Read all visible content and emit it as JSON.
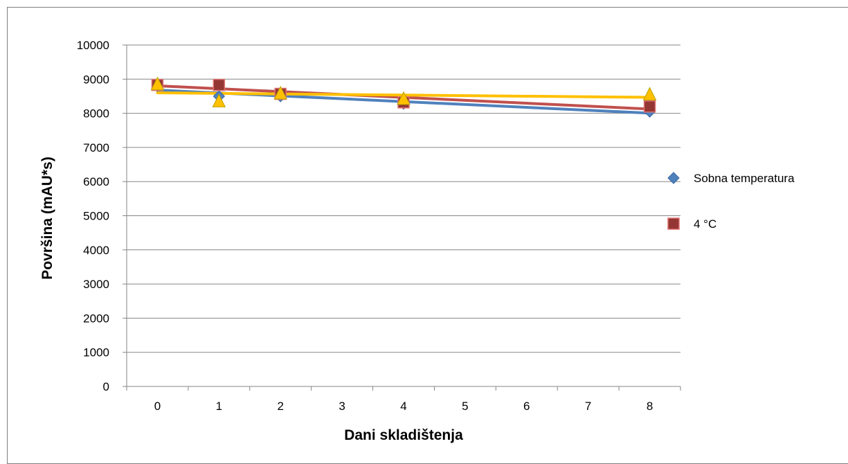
{
  "chart_data": {
    "type": "scatter",
    "xlabel": "Dani skladištenja",
    "ylabel": "Površina (mAU*s)",
    "xlim": [
      -0.5,
      8.5
    ],
    "ylim": [
      0,
      10000
    ],
    "x_ticks": [
      "0",
      "1",
      "2",
      "3",
      "4",
      "5",
      "6",
      "7",
      "8"
    ],
    "y_ticks": [
      "0",
      "1000",
      "2000",
      "3000",
      "4000",
      "5000",
      "6000",
      "7000",
      "8000",
      "9000",
      "10000"
    ],
    "grid": "horizontal",
    "legend_position": "right",
    "trendlines": "linear",
    "series": [
      {
        "name": "Sobna temperatura",
        "marker": "diamond",
        "color": "#4F81BD",
        "trend_color": "#4F81BD",
        "points": [
          [
            0,
            8800
          ],
          [
            1,
            8500
          ],
          [
            2,
            8500
          ],
          [
            4,
            8280
          ],
          [
            8,
            8050
          ]
        ]
      },
      {
        "name": "4 °C",
        "marker": "square",
        "color": "#943634",
        "trend_color": "#C0504D",
        "points": [
          [
            0,
            8830
          ],
          [
            1,
            8830
          ],
          [
            2,
            8570
          ],
          [
            4,
            8320
          ],
          [
            8,
            8200
          ]
        ]
      },
      {
        "marker": "triangle",
        "color": "#FFC000",
        "trend_color": "#FFC000",
        "points": [
          [
            0,
            8850
          ],
          [
            1,
            8350
          ],
          [
            2,
            8580
          ],
          [
            4,
            8420
          ],
          [
            8,
            8550
          ]
        ]
      }
    ]
  }
}
